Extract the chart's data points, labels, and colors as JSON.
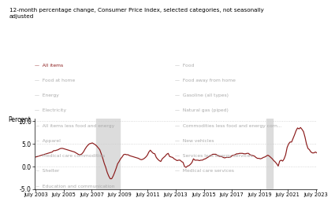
{
  "title": "12-month percentage change, Consumer Price Index, selected categories, not seasonally\nadjusted",
  "ylabel": "Percent",
  "ylim": [
    -5.0,
    10.5
  ],
  "yticks": [
    -5.0,
    0.0,
    5.0,
    10.0
  ],
  "x_start": 2003.417,
  "x_end": 2023.583,
  "xtick_labels": [
    "July 2003",
    "July 2005",
    "July 2007",
    "July 2009",
    "July 2011",
    "July 2013",
    "July 2015",
    "July 2017",
    "July 2019",
    "July 2021",
    "July 2023"
  ],
  "xtick_years": [
    2003.5,
    2005.5,
    2007.5,
    2009.5,
    2011.5,
    2013.5,
    2015.5,
    2017.5,
    2019.5,
    2021.5,
    2023.5
  ],
  "line_color": "#8B1A1A",
  "recession1_start": 2007.83,
  "recession1_end": 2009.5,
  "recession2_start": 2020.0,
  "recession2_end": 2020.42,
  "recession_color": "#DCDCDC",
  "grid_color": "#CCCCCC",
  "legend_left": [
    [
      "All items",
      "#8B1A1A"
    ],
    [
      "Food at home",
      "#AAAAAA"
    ],
    [
      "Energy",
      "#AAAAAA"
    ],
    [
      "Electricity",
      "#AAAAAA"
    ],
    [
      "All items less food and energy",
      "#AAAAAA"
    ],
    [
      "Apparel",
      "#AAAAAA"
    ],
    [
      "Medical care commodities",
      "#AAAAAA"
    ],
    [
      "Shelter",
      "#AAAAAA"
    ],
    [
      "Education and communication",
      "#AAAAAA"
    ]
  ],
  "legend_right": [
    [
      "Food",
      "#AAAAAA"
    ],
    [
      "Food away from home",
      "#AAAAAA"
    ],
    [
      "Gasoline (all types)",
      "#AAAAAA"
    ],
    [
      "Natural gas (piped)",
      "#AAAAAA"
    ],
    [
      "Commodities less food and energy corn...",
      "#AAAAAA"
    ],
    [
      "New vehicles",
      "#AAAAAA"
    ],
    [
      "Services less energy services",
      "#AAAAAA"
    ],
    [
      "Medical care services",
      "#AAAAAA"
    ]
  ],
  "cpi_all_items": [
    2.1,
    2.2,
    2.3,
    2.4,
    2.5,
    2.6,
    2.7,
    2.8,
    2.9,
    3.0,
    3.1,
    3.2,
    3.5,
    3.5,
    3.6,
    3.7,
    3.9,
    4.0,
    4.0,
    3.9,
    3.8,
    3.7,
    3.6,
    3.5,
    3.4,
    3.3,
    3.2,
    3.0,
    2.8,
    2.6,
    2.6,
    2.8,
    3.2,
    3.8,
    4.3,
    4.7,
    5.0,
    5.1,
    5.2,
    5.0,
    4.8,
    4.5,
    4.1,
    3.7,
    2.8,
    1.8,
    0.7,
    -0.2,
    -1.3,
    -2.1,
    -2.7,
    -2.7,
    -2.1,
    -1.3,
    -0.4,
    0.6,
    1.1,
    1.7,
    2.1,
    2.6,
    2.7,
    2.6,
    2.6,
    2.4,
    2.3,
    2.2,
    2.1,
    2.0,
    1.9,
    1.8,
    1.6,
    1.5,
    1.6,
    1.8,
    2.1,
    2.5,
    3.2,
    3.6,
    3.2,
    2.9,
    2.8,
    2.0,
    1.6,
    1.3,
    1.1,
    1.7,
    2.0,
    2.3,
    2.7,
    2.9,
    2.2,
    2.1,
    2.0,
    1.7,
    1.5,
    1.3,
    1.4,
    1.4,
    1.1,
    0.9,
    0.0,
    -0.2,
    0.1,
    0.2,
    0.5,
    0.9,
    1.7,
    1.4,
    1.4,
    1.4,
    1.3,
    1.4,
    1.4,
    1.6,
    1.7,
    1.9,
    2.1,
    2.3,
    2.5,
    2.7,
    2.7,
    2.7,
    2.5,
    2.3,
    2.2,
    2.2,
    2.0,
    1.9,
    2.0,
    2.0,
    2.0,
    2.1,
    2.4,
    2.5,
    2.6,
    2.8,
    2.8,
    2.9,
    2.9,
    2.9,
    2.8,
    2.8,
    2.9,
    2.9,
    2.6,
    2.5,
    2.4,
    2.3,
    2.0,
    1.8,
    1.8,
    1.7,
    1.8,
    2.0,
    2.1,
    2.3,
    2.5,
    2.3,
    2.0,
    1.7,
    1.3,
    1.0,
    0.6,
    0.1,
    1.2,
    1.4,
    1.2,
    1.7,
    2.6,
    4.2,
    5.0,
    5.4,
    5.4,
    6.2,
    7.0,
    7.9,
    8.5,
    8.3,
    8.6,
    8.2,
    7.7,
    6.5,
    5.0,
    4.0,
    3.7,
    3.2,
    3.0,
    3.0,
    3.2,
    3.0
  ]
}
